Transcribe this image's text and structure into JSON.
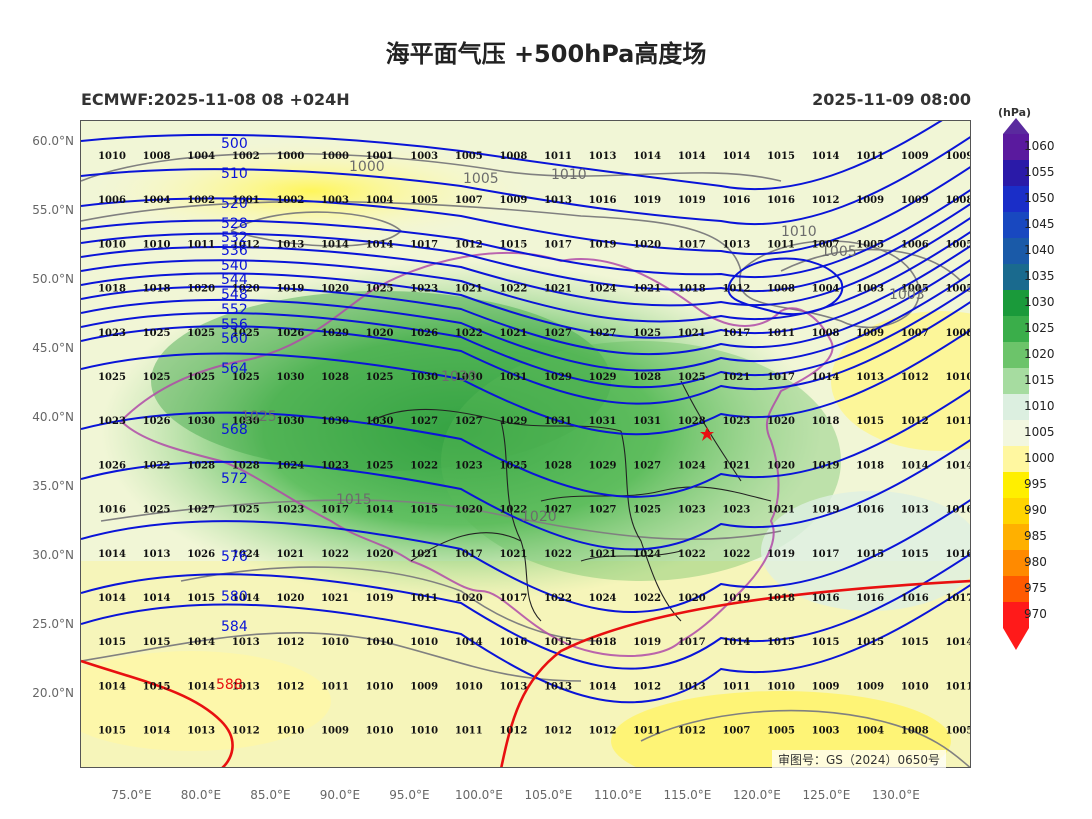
{
  "title": "海平面气压 +500hPa高度场",
  "subtitle_left": "ECMWF:2025-11-08 08 +024H",
  "subtitle_right": "2025-11-09 08:00",
  "map": {
    "lat_labels": [
      "60.0°N",
      "55.0°N",
      "50.0°N",
      "45.0°N",
      "40.0°N",
      "35.0°N",
      "30.0°N",
      "25.0°N",
      "20.0°N"
    ],
    "lat_values": [
      60,
      55,
      50,
      45,
      40,
      35,
      30,
      25,
      20
    ],
    "lon_labels": [
      "75.0°E",
      "80.0°E",
      "85.0°E",
      "90.0°E",
      "95.0°E",
      "100.0°E",
      "105.0°E",
      "110.0°E",
      "115.0°E",
      "120.0°E",
      "125.0°E",
      "130.0°E"
    ],
    "lon_values": [
      75,
      80,
      85,
      90,
      95,
      100,
      105,
      110,
      115,
      120,
      125,
      130
    ],
    "pressure_rows": [
      [
        "1010",
        "1008",
        "1004",
        "1002",
        "1000",
        "1000",
        "1001",
        "1003",
        "1005",
        "1008",
        "1011",
        "1013",
        "1014",
        "1014",
        "1014",
        "1015",
        "1014",
        "1011",
        "1009",
        "1009"
      ],
      [
        "1006",
        "1004",
        "1002",
        "1001",
        "1002",
        "1003",
        "1004",
        "1005",
        "1007",
        "1009",
        "1013",
        "1016",
        "1019",
        "1019",
        "1016",
        "1016",
        "1012",
        "1009",
        "1009",
        "1008"
      ],
      [
        "1010",
        "1010",
        "1011",
        "1012",
        "1013",
        "1014",
        "1014",
        "1017",
        "1012",
        "1015",
        "1017",
        "1019",
        "1020",
        "1017",
        "1013",
        "1011",
        "1007",
        "1005",
        "1006",
        "1005"
      ],
      [
        "1018",
        "1018",
        "1020",
        "1020",
        "1019",
        "1020",
        "1025",
        "1023",
        "1021",
        "1022",
        "1021",
        "1024",
        "1021",
        "1018",
        "1012",
        "1008",
        "1004",
        "1003",
        "1005",
        "1005"
      ],
      [
        "1023",
        "1025",
        "1025",
        "1025",
        "1026",
        "1029",
        "1020",
        "1026",
        "1022",
        "1021",
        "1027",
        "1027",
        "1025",
        "1021",
        "1017",
        "1011",
        "1008",
        "1009",
        "1007",
        "1008"
      ],
      [
        "1025",
        "1025",
        "1025",
        "1025",
        "1030",
        "1028",
        "1025",
        "1030",
        "1030",
        "1031",
        "1029",
        "1029",
        "1028",
        "1025",
        "1021",
        "1017",
        "1014",
        "1013",
        "1012",
        "1010"
      ],
      [
        "1023",
        "1026",
        "1030",
        "1030",
        "1030",
        "1030",
        "1030",
        "1027",
        "1027",
        "1029",
        "1031",
        "1031",
        "1031",
        "1028",
        "1023",
        "1020",
        "1018",
        "1015",
        "1012",
        "1011"
      ],
      [
        "1026",
        "1022",
        "1028",
        "1028",
        "1024",
        "1023",
        "1025",
        "1022",
        "1023",
        "1025",
        "1028",
        "1029",
        "1027",
        "1024",
        "1021",
        "1020",
        "1019",
        "1018",
        "1014",
        "1014"
      ],
      [
        "1016",
        "1025",
        "1027",
        "1025",
        "1023",
        "1017",
        "1014",
        "1015",
        "1020",
        "1022",
        "1027",
        "1027",
        "1025",
        "1023",
        "1023",
        "1021",
        "1019",
        "1016",
        "1013",
        "1016"
      ],
      [
        "1014",
        "1013",
        "1026",
        "1024",
        "1021",
        "1022",
        "1020",
        "1021",
        "1017",
        "1021",
        "1022",
        "1021",
        "1024",
        "1022",
        "1022",
        "1019",
        "1017",
        "1015",
        "1015",
        "1016"
      ],
      [
        "1014",
        "1014",
        "1015",
        "1014",
        "1020",
        "1021",
        "1019",
        "1011",
        "1020",
        "1017",
        "1022",
        "1024",
        "1022",
        "1020",
        "1019",
        "1018",
        "1016",
        "1016",
        "1016",
        "1017"
      ],
      [
        "1015",
        "1015",
        "1014",
        "1013",
        "1012",
        "1010",
        "1010",
        "1010",
        "1014",
        "1016",
        "1015",
        "1018",
        "1019",
        "1017",
        "1014",
        "1015",
        "1015",
        "1015",
        "1015",
        "1014"
      ],
      [
        "1014",
        "1015",
        "1014",
        "1013",
        "1012",
        "1011",
        "1010",
        "1009",
        "1010",
        "1013",
        "1013",
        "1014",
        "1012",
        "1013",
        "1011",
        "1010",
        "1009",
        "1009",
        "1010",
        "1011"
      ],
      [
        "1015",
        "1014",
        "1013",
        "1012",
        "1010",
        "1009",
        "1010",
        "1010",
        "1011",
        "1012",
        "1012",
        "1012",
        "1011",
        "1012",
        "1007",
        "1005",
        "1003",
        "1004",
        "1008",
        "1005"
      ]
    ],
    "height_labels": [
      "500",
      "510",
      "520",
      "528",
      "532",
      "536",
      "540",
      "544",
      "548",
      "552",
      "556",
      "560",
      "564",
      "568",
      "572",
      "576",
      "580",
      "584",
      "588"
    ],
    "isobar_labels": [
      "1000",
      "1005",
      "1010",
      "1015",
      "1020",
      "1025",
      "1030",
      "1010",
      "1005",
      "1003"
    ],
    "station_marker": "red-star",
    "stamp": "审图号：GS（2024）0650号"
  },
  "colorbar": {
    "unit": "(hPa)",
    "labels": [
      "1060",
      "1055",
      "1050",
      "1045",
      "1040",
      "1035",
      "1030",
      "1025",
      "1020",
      "1015",
      "1010",
      "1005",
      "1000",
      "995",
      "990",
      "985",
      "980",
      "975",
      "970"
    ],
    "colors": [
      "#5a1a9e",
      "#2a1aa8",
      "#1a2ec8",
      "#1848c0",
      "#1a5aa8",
      "#1a6a8e",
      "#1a9a3a",
      "#3aae4a",
      "#6cc46a",
      "#a6dca0",
      "#dcefe0",
      "#f2f7e0",
      "#fff7a0",
      "#ffef00",
      "#ffd400",
      "#ffb000",
      "#ff8a00",
      "#ff5a00",
      "#ff1a1a"
    ],
    "top_arrow_color": "#5a2a9e",
    "bottom_arrow_color": "#ff1a1a"
  },
  "colors": {
    "height_contour": "#0a14d8",
    "height_contour_warm": "#e81010",
    "isobar": "#808080",
    "border_province": "#222222",
    "border_national": "#b04aa8"
  }
}
